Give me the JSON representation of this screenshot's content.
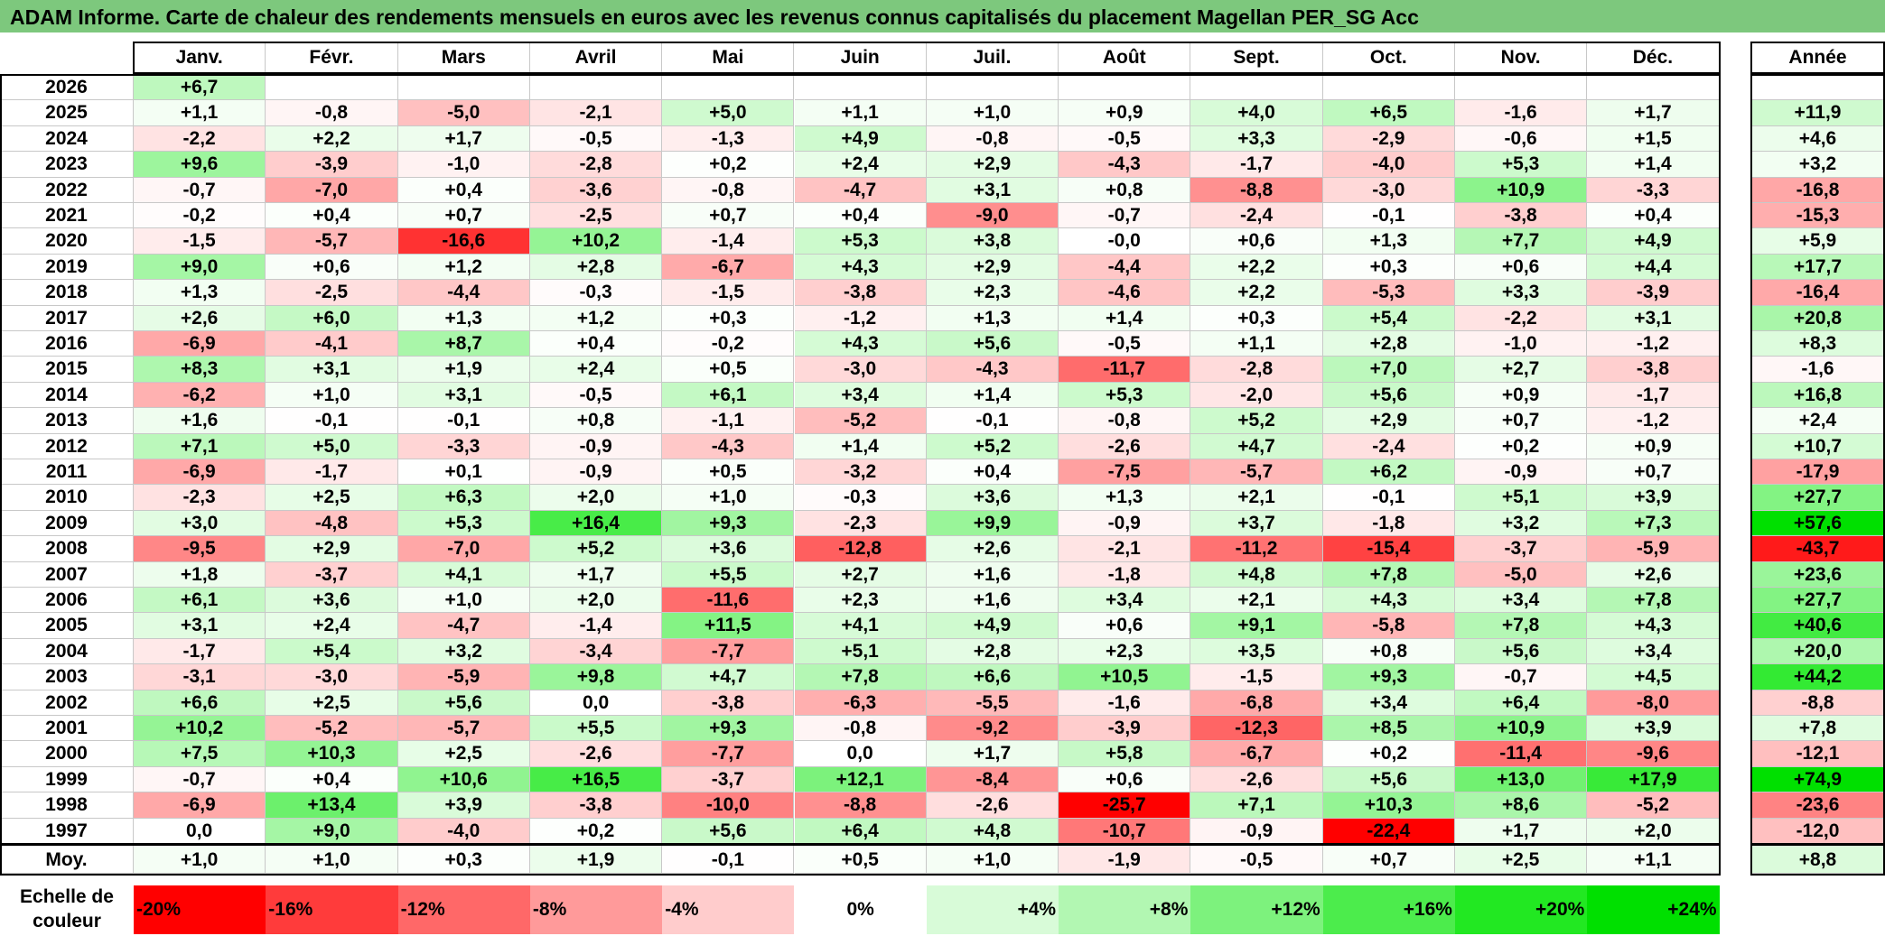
{
  "title": "ADAM Informe. Carte de chaleur des rendements mensuels en euros avec les revenus connus capitalisés du placement Magellan PER_SG Acc",
  "chart_data": {
    "type": "heatmap",
    "title": "ADAM Informe. Carte de chaleur des rendements mensuels en euros avec les revenus connus capitalisés du placement Magellan PER_SG Acc",
    "months": [
      "Janv.",
      "Févr.",
      "Mars",
      "Avril",
      "Mai",
      "Juin",
      "Juil.",
      "Août",
      "Sept.",
      "Oct.",
      "Nov.",
      "Déc."
    ],
    "annual_header": "Année",
    "rows": [
      {
        "year": "2026",
        "values": [
          "+6,7",
          "",
          "",
          "",
          "",
          "",
          "",
          "",
          "",
          "",
          "",
          ""
        ],
        "annual": ""
      },
      {
        "year": "2025",
        "values": [
          "+1,1",
          "-0,8",
          "-5,0",
          "-2,1",
          "+5,0",
          "+1,1",
          "+1,0",
          "+0,9",
          "+4,0",
          "+6,5",
          "-1,6",
          "+1,7"
        ],
        "annual": "+11,9"
      },
      {
        "year": "2024",
        "values": [
          "-2,2",
          "+2,2",
          "+1,7",
          "-0,5",
          "-1,3",
          "+4,9",
          "-0,8",
          "-0,5",
          "+3,3",
          "-2,9",
          "-0,6",
          "+1,5"
        ],
        "annual": "+4,6"
      },
      {
        "year": "2023",
        "values": [
          "+9,6",
          "-3,9",
          "-1,0",
          "-2,8",
          "+0,2",
          "+2,4",
          "+2,9",
          "-4,3",
          "-1,7",
          "-4,0",
          "+5,3",
          "+1,4"
        ],
        "annual": "+3,2"
      },
      {
        "year": "2022",
        "values": [
          "-0,7",
          "-7,0",
          "+0,4",
          "-3,6",
          "-0,8",
          "-4,7",
          "+3,1",
          "+0,8",
          "-8,8",
          "-3,0",
          "+10,9",
          "-3,3"
        ],
        "annual": "-16,8"
      },
      {
        "year": "2021",
        "values": [
          "-0,2",
          "+0,4",
          "+0,7",
          "-2,5",
          "+0,7",
          "+0,4",
          "-9,0",
          "-0,7",
          "-2,4",
          "-0,1",
          "-3,8",
          "+0,4"
        ],
        "annual": "-15,3"
      },
      {
        "year": "2020",
        "values": [
          "-1,5",
          "-5,7",
          "-16,6",
          "+10,2",
          "-1,4",
          "+5,3",
          "+3,8",
          "-0,0",
          "+0,6",
          "+1,3",
          "+7,7",
          "+4,9"
        ],
        "annual": "+5,9"
      },
      {
        "year": "2019",
        "values": [
          "+9,0",
          "+0,6",
          "+1,2",
          "+2,8",
          "-6,7",
          "+4,3",
          "+2,9",
          "-4,4",
          "+2,2",
          "+0,3",
          "+0,6",
          "+4,4"
        ],
        "annual": "+17,7"
      },
      {
        "year": "2018",
        "values": [
          "+1,3",
          "-2,5",
          "-4,4",
          "-0,3",
          "-1,5",
          "-3,8",
          "+2,3",
          "-4,6",
          "+2,2",
          "-5,3",
          "+3,3",
          "-3,9"
        ],
        "annual": "-16,4"
      },
      {
        "year": "2017",
        "values": [
          "+2,6",
          "+6,0",
          "+1,3",
          "+1,2",
          "+0,3",
          "-1,2",
          "+1,3",
          "+1,4",
          "+0,3",
          "+5,4",
          "-2,2",
          "+3,1"
        ],
        "annual": "+20,8"
      },
      {
        "year": "2016",
        "values": [
          "-6,9",
          "-4,1",
          "+8,7",
          "+0,4",
          "-0,2",
          "+4,3",
          "+5,6",
          "-0,5",
          "+1,1",
          "+2,8",
          "-1,0",
          "-1,2"
        ],
        "annual": "+8,3"
      },
      {
        "year": "2015",
        "values": [
          "+8,3",
          "+3,1",
          "+1,9",
          "+2,4",
          "+0,5",
          "-3,0",
          "-4,3",
          "-11,7",
          "-2,8",
          "+7,0",
          "+2,7",
          "-3,8"
        ],
        "annual": "-1,6"
      },
      {
        "year": "2014",
        "values": [
          "-6,2",
          "+1,0",
          "+3,1",
          "-0,5",
          "+6,1",
          "+3,4",
          "+1,4",
          "+5,3",
          "-2,0",
          "+5,6",
          "+0,9",
          "-1,7"
        ],
        "annual": "+16,8"
      },
      {
        "year": "2013",
        "values": [
          "+1,6",
          "-0,1",
          "-0,1",
          "+0,8",
          "-1,1",
          "-5,2",
          "-0,1",
          "-0,8",
          "+5,2",
          "+2,9",
          "+0,7",
          "-1,2"
        ],
        "annual": "+2,4"
      },
      {
        "year": "2012",
        "values": [
          "+7,1",
          "+5,0",
          "-3,3",
          "-0,9",
          "-4,3",
          "+1,4",
          "+5,2",
          "-2,6",
          "+4,7",
          "-2,4",
          "+0,2",
          "+0,9"
        ],
        "annual": "+10,7"
      },
      {
        "year": "2011",
        "values": [
          "-6,9",
          "-1,7",
          "+0,1",
          "-0,9",
          "+0,5",
          "-3,2",
          "+0,4",
          "-7,5",
          "-5,7",
          "+6,2",
          "-0,9",
          "+0,7"
        ],
        "annual": "-17,9"
      },
      {
        "year": "2010",
        "values": [
          "-2,3",
          "+2,5",
          "+6,3",
          "+2,0",
          "+1,0",
          "-0,3",
          "+3,6",
          "+1,3",
          "+2,1",
          "-0,1",
          "+5,1",
          "+3,9"
        ],
        "annual": "+27,7"
      },
      {
        "year": "2009",
        "values": [
          "+3,0",
          "-4,8",
          "+5,3",
          "+16,4",
          "+9,3",
          "-2,3",
          "+9,9",
          "-0,9",
          "+3,7",
          "-1,8",
          "+3,2",
          "+7,3"
        ],
        "annual": "+57,6"
      },
      {
        "year": "2008",
        "values": [
          "-9,5",
          "+2,9",
          "-7,0",
          "+5,2",
          "+3,6",
          "-12,8",
          "+2,6",
          "-2,1",
          "-11,2",
          "-15,4",
          "-3,7",
          "-5,9"
        ],
        "annual": "-43,7"
      },
      {
        "year": "2007",
        "values": [
          "+1,8",
          "-3,7",
          "+4,1",
          "+1,7",
          "+5,5",
          "+2,7",
          "+1,6",
          "-1,8",
          "+4,8",
          "+7,8",
          "-5,0",
          "+2,6"
        ],
        "annual": "+23,6"
      },
      {
        "year": "2006",
        "values": [
          "+6,1",
          "+3,6",
          "+1,0",
          "+2,0",
          "-11,6",
          "+2,3",
          "+1,6",
          "+3,4",
          "+2,1",
          "+4,3",
          "+3,4",
          "+7,8"
        ],
        "annual": "+27,7"
      },
      {
        "year": "2005",
        "values": [
          "+3,1",
          "+2,4",
          "-4,7",
          "-1,4",
          "+11,5",
          "+4,1",
          "+4,9",
          "+0,6",
          "+9,1",
          "-5,8",
          "+7,8",
          "+4,3"
        ],
        "annual": "+40,6"
      },
      {
        "year": "2004",
        "values": [
          "-1,7",
          "+5,4",
          "+3,2",
          "-3,4",
          "-7,7",
          "+5,1",
          "+2,8",
          "+2,3",
          "+3,5",
          "+0,8",
          "+5,6",
          "+3,4"
        ],
        "annual": "+20,0"
      },
      {
        "year": "2003",
        "values": [
          "-3,1",
          "-3,0",
          "-5,9",
          "+9,8",
          "+4,7",
          "+7,8",
          "+6,6",
          "+10,5",
          "-1,5",
          "+9,3",
          "-0,7",
          "+4,5"
        ],
        "annual": "+44,2"
      },
      {
        "year": "2002",
        "values": [
          "+6,6",
          "+2,5",
          "+5,6",
          "0,0",
          "-3,8",
          "-6,3",
          "-5,5",
          "-1,6",
          "-6,8",
          "+3,4",
          "+6,4",
          "-8,0"
        ],
        "annual": "-8,8"
      },
      {
        "year": "2001",
        "values": [
          "+10,2",
          "-5,2",
          "-5,7",
          "+5,5",
          "+9,3",
          "-0,8",
          "-9,2",
          "-3,9",
          "-12,3",
          "+8,5",
          "+10,9",
          "+3,9"
        ],
        "annual": "+7,8"
      },
      {
        "year": "2000",
        "values": [
          "+7,5",
          "+10,3",
          "+2,5",
          "-2,6",
          "-7,7",
          "0,0",
          "+1,7",
          "+5,8",
          "-6,7",
          "+0,2",
          "-11,4",
          "-9,6"
        ],
        "annual": "-12,1"
      },
      {
        "year": "1999",
        "values": [
          "-0,7",
          "+0,4",
          "+10,6",
          "+16,5",
          "-3,7",
          "+12,1",
          "-8,4",
          "+0,6",
          "-2,6",
          "+5,6",
          "+13,0",
          "+17,9"
        ],
        "annual": "+74,9"
      },
      {
        "year": "1998",
        "values": [
          "-6,9",
          "+13,4",
          "+3,9",
          "-3,8",
          "-10,0",
          "-8,8",
          "-2,6",
          "-25,7",
          "+7,1",
          "+10,3",
          "+8,6",
          "-5,2"
        ],
        "annual": "-23,6"
      },
      {
        "year": "1997",
        "values": [
          "0,0",
          "+9,0",
          "-4,0",
          "+0,2",
          "+5,6",
          "+6,4",
          "+4,8",
          "-10,7",
          "-0,9",
          "-22,4",
          "+1,7",
          "+2,0"
        ],
        "annual": "-12,0"
      }
    ],
    "average": {
      "label": "Moy.",
      "values": [
        "+1,0",
        "+1,0",
        "+0,3",
        "+1,9",
        "-0,1",
        "+0,5",
        "+1,0",
        "-1,9",
        "-0,5",
        "+0,7",
        "+2,5",
        "+1,1"
      ],
      "annual": "+8,8"
    },
    "scale": {
      "label_line1": "Echelle de",
      "label_line2": "couleur",
      "stops": [
        "-20%",
        "-16%",
        "-12%",
        "-8%",
        "-4%",
        "0%",
        "+4%",
        "+8%",
        "+12%",
        "+16%",
        "+20%",
        "+24%"
      ],
      "stop_values": [
        -20,
        -16,
        -12,
        -8,
        -4,
        0,
        4,
        8,
        12,
        16,
        20,
        24
      ],
      "colors": [
        "#ff0000",
        "#ff3b3b",
        "#ff6868",
        "#ff9a9a",
        "#ffcccc",
        "#ffffff",
        "#d8fbd8",
        "#b2f7b2",
        "#7df27d",
        "#4cec4c",
        "#22e822",
        "#00e000"
      ]
    }
  }
}
